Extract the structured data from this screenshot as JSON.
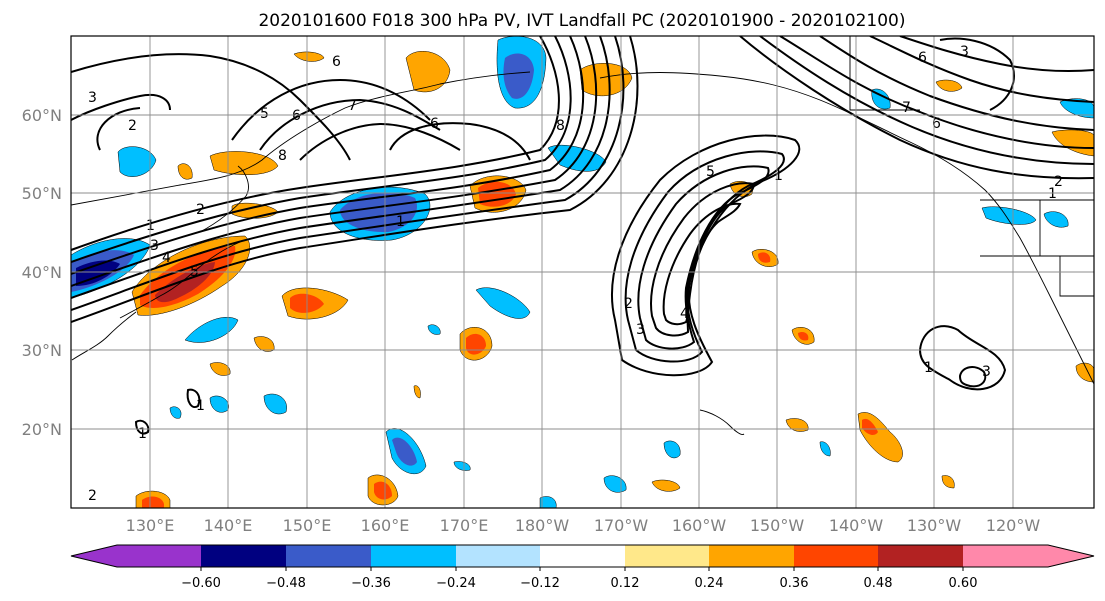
{
  "figure": {
    "title": "2020101600 F018 300 hPa PV, IVT Landfall PC (2020101900 - 2020102100)"
  },
  "map": {
    "lat_labels": [
      "60°N",
      "50°N",
      "40°N",
      "30°N",
      "20°N"
    ],
    "lon_labels": [
      "130°E",
      "140°E",
      "150°E",
      "160°E",
      "170°E",
      "180°W",
      "170°W",
      "160°W",
      "150°W",
      "140°W",
      "130°W",
      "120°W"
    ],
    "contour_labels": [
      "6",
      "5",
      "6",
      "7",
      "6",
      "8",
      "8",
      "3",
      "2",
      "1",
      "2",
      "3",
      "4",
      "5",
      "1",
      "1",
      "2",
      "3",
      "4",
      "5",
      "1",
      "6",
      "7",
      "2",
      "1",
      "1",
      "3",
      "3",
      "6",
      "1",
      "2"
    ]
  },
  "colorbar": {
    "colors": [
      "#9933cc",
      "#000080",
      "#3a5bc9",
      "#00bfff",
      "#b3e3ff",
      "#ffffff",
      "#ffe88a",
      "#ffa500",
      "#ff4500",
      "#b22222",
      "#ff88aa"
    ],
    "tick_labels": [
      "−0.60",
      "−0.48",
      "−0.36",
      "−0.24",
      "−0.12",
      "0.12",
      "0.24",
      "0.36",
      "0.48",
      "0.60"
    ]
  }
}
